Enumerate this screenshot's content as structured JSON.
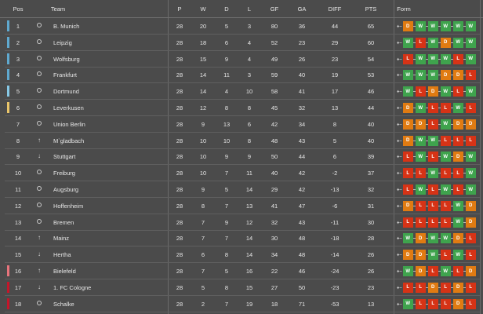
{
  "headers": {
    "pos": "Pos",
    "team": "Team",
    "p": "P",
    "w": "W",
    "d": "D",
    "l": "L",
    "gf": "GF",
    "ga": "GA",
    "diff": "DIFF",
    "pts": "PTS",
    "form": "Form"
  },
  "colors": {
    "W": "#3fa34d",
    "D": "#e07b12",
    "L": "#d63316",
    "cl": "#5fa9cf",
    "cl2": "#87c9e6",
    "el": "#e9c56a",
    "rel_playoff": "#e8747c",
    "rel": "#c4162a"
  },
  "rows": [
    {
      "pos": "1",
      "trend": "same",
      "team": "B. Munich",
      "p": "28",
      "w": "20",
      "d": "5",
      "l": "3",
      "gf": "80",
      "ga": "36",
      "diff": "44",
      "pts": "65",
      "form": "DWWWWW",
      "zone": "cl"
    },
    {
      "pos": "2",
      "trend": "same",
      "team": "Leipzig",
      "p": "28",
      "w": "18",
      "d": "6",
      "l": "4",
      "gf": "52",
      "ga": "23",
      "diff": "29",
      "pts": "60",
      "form": "WLWDWW",
      "zone": "cl"
    },
    {
      "pos": "3",
      "trend": "same",
      "team": "Wolfsburg",
      "p": "28",
      "w": "15",
      "d": "9",
      "l": "4",
      "gf": "49",
      "ga": "26",
      "diff": "23",
      "pts": "54",
      "form": "LWWWLW",
      "zone": "cl"
    },
    {
      "pos": "4",
      "trend": "same",
      "team": "Frankfurt",
      "p": "28",
      "w": "14",
      "d": "11",
      "l": "3",
      "gf": "59",
      "ga": "40",
      "diff": "19",
      "pts": "53",
      "form": "WWWDDL",
      "zone": "cl"
    },
    {
      "pos": "5",
      "trend": "same",
      "team": "Dortmund",
      "p": "28",
      "w": "14",
      "d": "4",
      "l": "10",
      "gf": "58",
      "ga": "41",
      "diff": "17",
      "pts": "46",
      "form": "WLDWLW",
      "zone": "cl2"
    },
    {
      "pos": "6",
      "trend": "same",
      "team": "Leverkusen",
      "p": "28",
      "w": "12",
      "d": "8",
      "l": "8",
      "gf": "45",
      "ga": "32",
      "diff": "13",
      "pts": "44",
      "form": "DWLLWL",
      "zone": "el"
    },
    {
      "pos": "7",
      "trend": "same",
      "team": "Union Berlin",
      "p": "28",
      "w": "9",
      "d": "13",
      "l": "6",
      "gf": "42",
      "ga": "34",
      "diff": "8",
      "pts": "40",
      "form": "DDLWDD",
      "zone": ""
    },
    {
      "pos": "8",
      "trend": "up",
      "team": "M`gladbach",
      "p": "28",
      "w": "10",
      "d": "10",
      "l": "8",
      "gf": "48",
      "ga": "43",
      "diff": "5",
      "pts": "40",
      "form": "DWWLLL",
      "zone": ""
    },
    {
      "pos": "9",
      "trend": "down",
      "team": "Stuttgart",
      "p": "28",
      "w": "10",
      "d": "9",
      "l": "9",
      "gf": "50",
      "ga": "44",
      "diff": "6",
      "pts": "39",
      "form": "LWLWDW",
      "zone": ""
    },
    {
      "pos": "10",
      "trend": "same",
      "team": "Freiburg",
      "p": "28",
      "w": "10",
      "d": "7",
      "l": "11",
      "gf": "40",
      "ga": "42",
      "diff": "-2",
      "pts": "37",
      "form": "LLWLLW",
      "zone": ""
    },
    {
      "pos": "11",
      "trend": "same",
      "team": "Augsburg",
      "p": "28",
      "w": "9",
      "d": "5",
      "l": "14",
      "gf": "29",
      "ga": "42",
      "diff": "-13",
      "pts": "32",
      "form": "LWLWLW",
      "zone": ""
    },
    {
      "pos": "12",
      "trend": "same",
      "team": "Hoffenheim",
      "p": "28",
      "w": "8",
      "d": "7",
      "l": "13",
      "gf": "41",
      "ga": "47",
      "diff": "-6",
      "pts": "31",
      "form": "DLLLWD",
      "zone": ""
    },
    {
      "pos": "13",
      "trend": "same",
      "team": "Bremen",
      "p": "28",
      "w": "7",
      "d": "9",
      "l": "12",
      "gf": "32",
      "ga": "43",
      "diff": "-11",
      "pts": "30",
      "form": "LLLLWD",
      "zone": ""
    },
    {
      "pos": "14",
      "trend": "up",
      "team": "Mainz",
      "p": "28",
      "w": "7",
      "d": "7",
      "l": "14",
      "gf": "30",
      "ga": "48",
      "diff": "-18",
      "pts": "28",
      "form": "WDWWDL",
      "zone": ""
    },
    {
      "pos": "15",
      "trend": "down",
      "team": "Hertha",
      "p": "28",
      "w": "6",
      "d": "8",
      "l": "14",
      "gf": "34",
      "ga": "48",
      "diff": "-14",
      "pts": "26",
      "form": "DDWLWL",
      "zone": ""
    },
    {
      "pos": "16",
      "trend": "up",
      "team": "Bielefeld",
      "p": "28",
      "w": "7",
      "d": "5",
      "l": "16",
      "gf": "22",
      "ga": "46",
      "diff": "-24",
      "pts": "26",
      "form": "WDLWLD",
      "zone": "rel_playoff"
    },
    {
      "pos": "17",
      "trend": "down",
      "team": "1. FC Cologne",
      "p": "28",
      "w": "5",
      "d": "8",
      "l": "15",
      "gf": "27",
      "ga": "50",
      "diff": "-23",
      "pts": "23",
      "form": "LLDLDL",
      "zone": "rel"
    },
    {
      "pos": "18",
      "trend": "same",
      "team": "Schalke",
      "p": "28",
      "w": "2",
      "d": "7",
      "l": "19",
      "gf": "18",
      "ga": "71",
      "diff": "-53",
      "pts": "13",
      "form": "WLLLDL",
      "zone": "rel"
    }
  ]
}
